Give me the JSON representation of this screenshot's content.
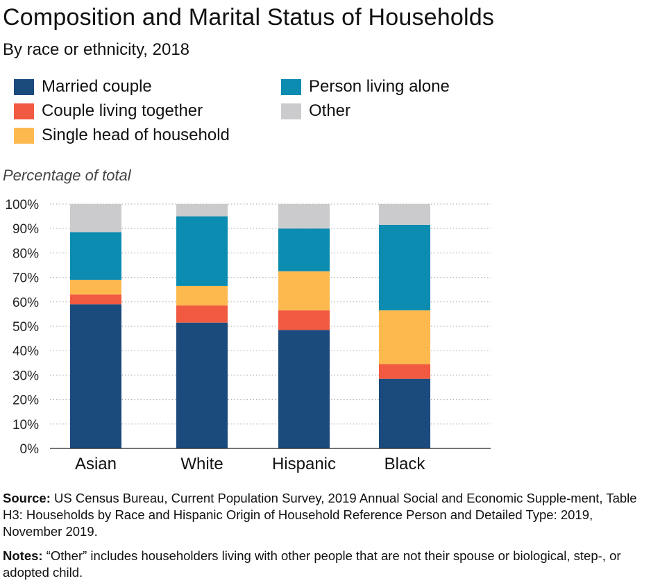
{
  "title": "Composition and Marital Status of Households",
  "subtitle": "By race or ethnicity, 2018",
  "colors": {
    "married": "#1b4a7d",
    "cohabiting": "#f15a40",
    "single_head": "#fdb94e",
    "alone": "#0b8cb0",
    "other": "#cbcbcd"
  },
  "chart_data": {
    "type": "bar",
    "stacked": true,
    "categories": [
      "Asian",
      "White",
      "Hispanic",
      "Black"
    ],
    "series": [
      {
        "name": "Married couple",
        "color": "#1b4a7d",
        "values": [
          59,
          51.5,
          48.5,
          28.5
        ]
      },
      {
        "name": "Couple living together",
        "color": "#f15a40",
        "values": [
          4,
          7,
          8,
          6
        ]
      },
      {
        "name": "Single head of household",
        "color": "#fdb94e",
        "values": [
          6,
          8,
          16,
          22
        ]
      },
      {
        "name": "Person living alone",
        "color": "#0b8cb0",
        "values": [
          19.5,
          28.5,
          17.5,
          35
        ]
      },
      {
        "name": "Other",
        "color": "#cbcbcd",
        "values": [
          11.5,
          5,
          10,
          8.5
        ]
      }
    ],
    "ylabel": "Percentage of total",
    "ylim": [
      0,
      100
    ],
    "yticks": [
      "0%",
      "10%",
      "20%",
      "30%",
      "40%",
      "50%",
      "60%",
      "70%",
      "80%",
      "90%",
      "100%"
    ],
    "grid": true,
    "legend_position": "top"
  },
  "source": {
    "label": "Source:",
    "text": "US Census Bureau, Current Population Survey, 2019 Annual Social and Economic Supple-ment, Table H3: Households by Race and Hispanic Origin of Household Reference Person and Detailed Type: 2019, November 2019."
  },
  "notes": {
    "label": "Notes:",
    "text": "“Other” includes householders living with other people that are not their spouse or biological, step-, or adopted child."
  }
}
